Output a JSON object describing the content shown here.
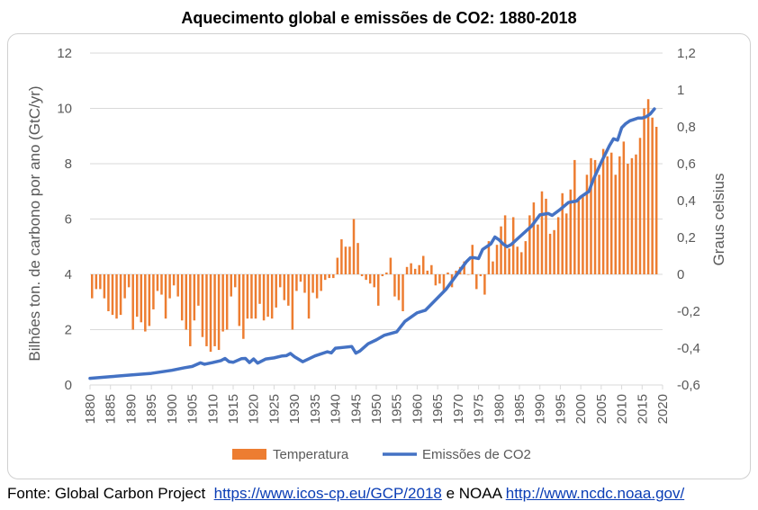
{
  "title": "Aquecimento global e emissões de CO2: 1880-2018",
  "source": {
    "prefix": "Fonte: Global Carbon Project",
    "link1": "https://www.icos-cp.eu/GCP/2018",
    "middle": "e NOAA",
    "link2": "http://www.ncdc.noaa.gov/"
  },
  "colors": {
    "bars": "#ED7D31",
    "line": "#4472C4"
  },
  "chart_data": {
    "type": "bar+line",
    "x_axis": {
      "min": 1880,
      "max": 2020,
      "step": 5,
      "ticks": [
        "1880",
        "1885",
        "1890",
        "1895",
        "1900",
        "1905",
        "1910",
        "1915",
        "1920",
        "1925",
        "1930",
        "1935",
        "1940",
        "1945",
        "1950",
        "1955",
        "1960",
        "1965",
        "1970",
        "1975",
        "1980",
        "1985",
        "1990",
        "1995",
        "2000",
        "2005",
        "2010",
        "2015",
        "2020"
      ]
    },
    "y_left": {
      "label": "Bilhões ton. de carbono por ano (GtC/yr)",
      "min": 0,
      "max": 12,
      "ticks": [
        "0",
        "2",
        "4",
        "6",
        "8",
        "10",
        "12"
      ]
    },
    "y_right": {
      "label": "Graus celsius",
      "min": -0.6,
      "max": 1.2,
      "ticks": [
        "-0,6",
        "-0,4",
        "-0,2",
        "0",
        "0,2",
        "0,4",
        "0,6",
        "0,8",
        "1",
        "1,2"
      ]
    },
    "grid": "horizontal",
    "legend": {
      "position": "bottom",
      "entries": [
        "Temperatura",
        "Emissões de CO2"
      ]
    },
    "series": [
      {
        "name": "Temperatura",
        "type": "bar",
        "axis": "right",
        "years_start": 1880,
        "values": [
          -0.13,
          -0.08,
          -0.08,
          -0.13,
          -0.2,
          -0.22,
          -0.24,
          -0.22,
          -0.13,
          -0.07,
          -0.3,
          -0.23,
          -0.26,
          -0.31,
          -0.28,
          -0.19,
          -0.09,
          -0.11,
          -0.24,
          -0.13,
          -0.06,
          -0.12,
          -0.25,
          -0.3,
          -0.39,
          -0.25,
          -0.17,
          -0.34,
          -0.39,
          -0.42,
          -0.39,
          -0.41,
          -0.31,
          -0.3,
          -0.12,
          -0.07,
          -0.28,
          -0.35,
          -0.24,
          -0.24,
          -0.24,
          -0.16,
          -0.25,
          -0.23,
          -0.24,
          -0.18,
          -0.07,
          -0.14,
          -0.17,
          -0.3,
          -0.09,
          -0.04,
          -0.1,
          -0.24,
          -0.1,
          -0.13,
          -0.09,
          -0.03,
          -0.02,
          -0.02,
          0.09,
          0.19,
          0.15,
          0.15,
          0.3,
          0.17,
          -0.01,
          -0.03,
          -0.05,
          -0.07,
          -0.17,
          -0.01,
          0.01,
          0.09,
          -0.12,
          -0.14,
          -0.2,
          0.04,
          0.06,
          0.03,
          0.05,
          0.1,
          0.02,
          0.05,
          -0.06,
          -0.05,
          -0.09,
          0.01,
          -0.07,
          0.02,
          0.04,
          0.07,
          0.0,
          0.16,
          -0.08,
          -0.01,
          -0.11,
          0.18,
          0.07,
          0.16,
          0.26,
          0.32,
          0.14,
          0.31,
          0.15,
          0.12,
          0.18,
          0.32,
          0.39,
          0.27,
          0.45,
          0.41,
          0.22,
          0.24,
          0.31,
          0.44,
          0.33,
          0.46,
          0.62,
          0.4,
          0.42,
          0.54,
          0.63,
          0.62,
          0.54,
          0.68,
          0.64,
          0.66,
          0.54,
          0.64,
          0.72,
          0.6,
          0.63,
          0.65,
          0.74,
          0.9,
          0.95,
          0.85,
          0.8
        ],
        "values_start_year": 1880
      },
      {
        "name": "Emissões de CO2",
        "type": "line",
        "axis": "left",
        "years": [
          1880,
          1885,
          1890,
          1895,
          1900,
          1903,
          1905,
          1907,
          1908,
          1910,
          1912,
          1913,
          1914,
          1915,
          1917,
          1918,
          1919,
          1920,
          1921,
          1923,
          1925,
          1927,
          1928,
          1929,
          1930,
          1932,
          1935,
          1938,
          1939,
          1940,
          1942,
          1944,
          1945,
          1946,
          1948,
          1950,
          1952,
          1955,
          1957,
          1960,
          1962,
          1965,
          1967,
          1970,
          1972,
          1973,
          1974,
          1975,
          1976,
          1978,
          1979,
          1980,
          1981,
          1982,
          1983,
          1985,
          1988,
          1990,
          1992,
          1993,
          1995,
          1997,
          1999,
          2000,
          2002,
          2003,
          2005,
          2007,
          2008,
          2009,
          2010,
          2011,
          2012,
          2013,
          2014,
          2015,
          2016,
          2017,
          2018
        ],
        "values": [
          0.24,
          0.3,
          0.36,
          0.42,
          0.53,
          0.62,
          0.67,
          0.8,
          0.75,
          0.81,
          0.88,
          0.96,
          0.84,
          0.82,
          0.95,
          0.96,
          0.81,
          0.94,
          0.79,
          0.94,
          0.98,
          1.05,
          1.06,
          1.14,
          1.02,
          0.84,
          1.05,
          1.2,
          1.16,
          1.33,
          1.36,
          1.39,
          1.15,
          1.23,
          1.49,
          1.63,
          1.8,
          1.92,
          2.3,
          2.61,
          2.7,
          3.15,
          3.45,
          4.05,
          4.45,
          4.6,
          4.6,
          4.57,
          4.9,
          5.1,
          5.35,
          5.25,
          5.1,
          5.0,
          5.08,
          5.35,
          5.75,
          6.15,
          6.2,
          6.13,
          6.35,
          6.6,
          6.65,
          6.8,
          7.0,
          7.4,
          8.05,
          8.65,
          8.9,
          8.85,
          9.3,
          9.45,
          9.55,
          9.6,
          9.65,
          9.65,
          9.7,
          9.8,
          9.98
        ]
      }
    ]
  }
}
